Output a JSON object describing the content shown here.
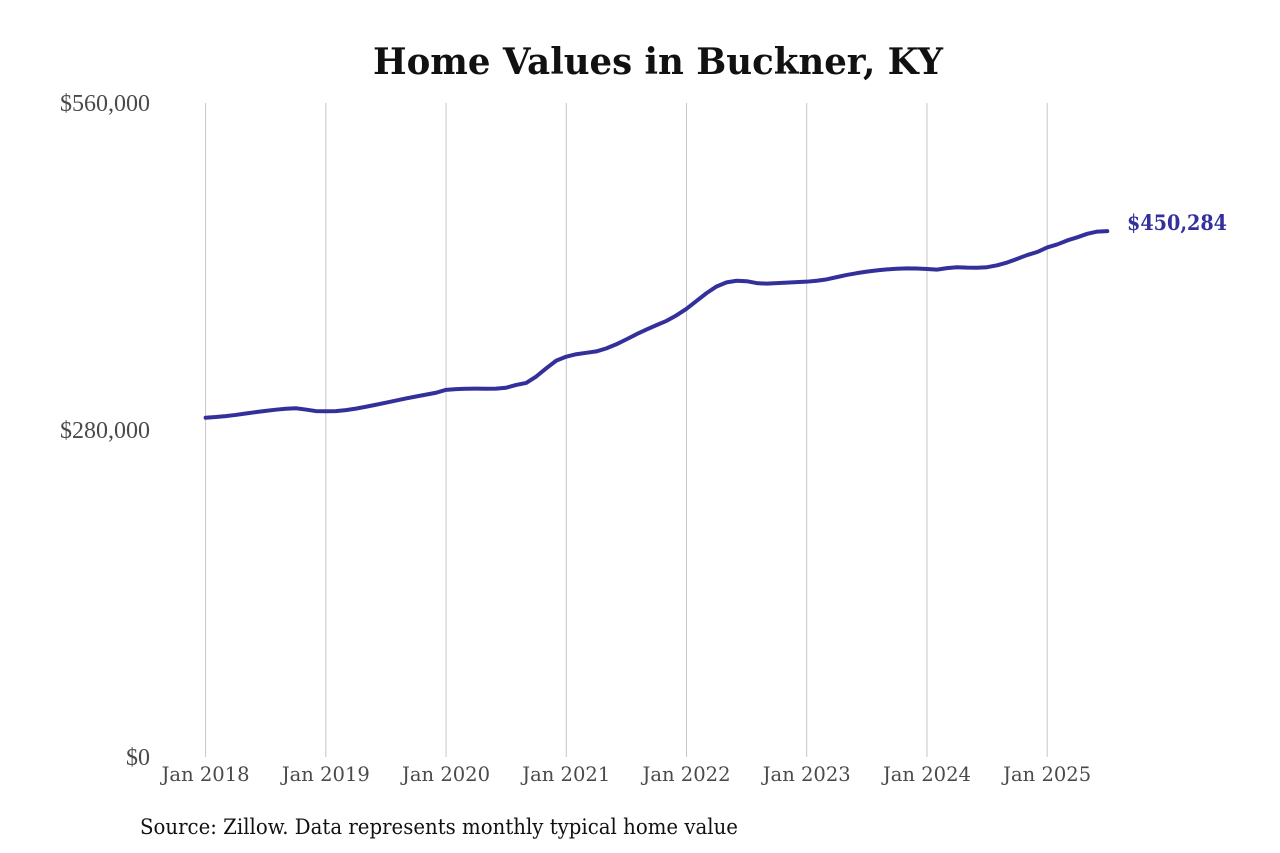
{
  "title": "Home Values in Buckner, KY",
  "end_label": "$450,284",
  "source_note": "Source: Zillow. Data represents monthly typical home value",
  "colors": {
    "line": "#33309c",
    "end_label": "#33309c",
    "grid": "#c6c6c6",
    "tick_text": "#4a4a4a",
    "title_text": "#111111",
    "source_text": "#111111"
  },
  "chart_data": {
    "type": "line",
    "title": "Home Values in Buckner, KY",
    "xlabel": "",
    "ylabel": "",
    "x_unit": "month",
    "x_range": [
      "Jan 2018",
      "Jul 2025"
    ],
    "x_tick_labels": [
      "Jan 2018",
      "Jan 2019",
      "Jan 2020",
      "Jan 2021",
      "Jan 2022",
      "Jan 2023",
      "Jan 2024",
      "Jan 2025"
    ],
    "x_ticks_months_from_start": [
      0,
      12,
      24,
      36,
      48,
      60,
      72,
      84
    ],
    "y_ticks": [
      {
        "value": 0,
        "label": "$0"
      },
      {
        "value": 280000,
        "label": "$280,000"
      },
      {
        "value": 560000,
        "label": "$560,000"
      }
    ],
    "ylim": [
      0,
      560000
    ],
    "grid": "vertical-only",
    "legend": "none",
    "end_value": 450284,
    "series": [
      {
        "name": "Monthly typical home value",
        "values": [
          290500,
          291100,
          291900,
          292900,
          294100,
          295300,
          296400,
          297400,
          298200,
          298600,
          297500,
          296200,
          296000,
          296200,
          297000,
          298300,
          299900,
          301600,
          303400,
          305200,
          307000,
          308700,
          310300,
          311900,
          314400,
          315000,
          315300,
          315400,
          315300,
          315400,
          316200,
          318600,
          320300,
          325800,
          332800,
          339400,
          342800,
          344900,
          346100,
          347300,
          349900,
          353400,
          357600,
          362000,
          366000,
          369800,
          373400,
          378200,
          383800,
          390500,
          397200,
          402900,
          406400,
          407800,
          407400,
          405800,
          405300,
          405800,
          406200,
          406600,
          407000,
          407800,
          409000,
          410900,
          412800,
          414300,
          415600,
          416700,
          417500,
          418100,
          418400,
          418300,
          417900,
          417300,
          418600,
          419400,
          419000,
          418900,
          419400,
          421000,
          423400,
          426500,
          429800,
          432400,
          436300,
          438900,
          442300,
          445000,
          448000,
          449900,
          450284
        ]
      }
    ]
  }
}
